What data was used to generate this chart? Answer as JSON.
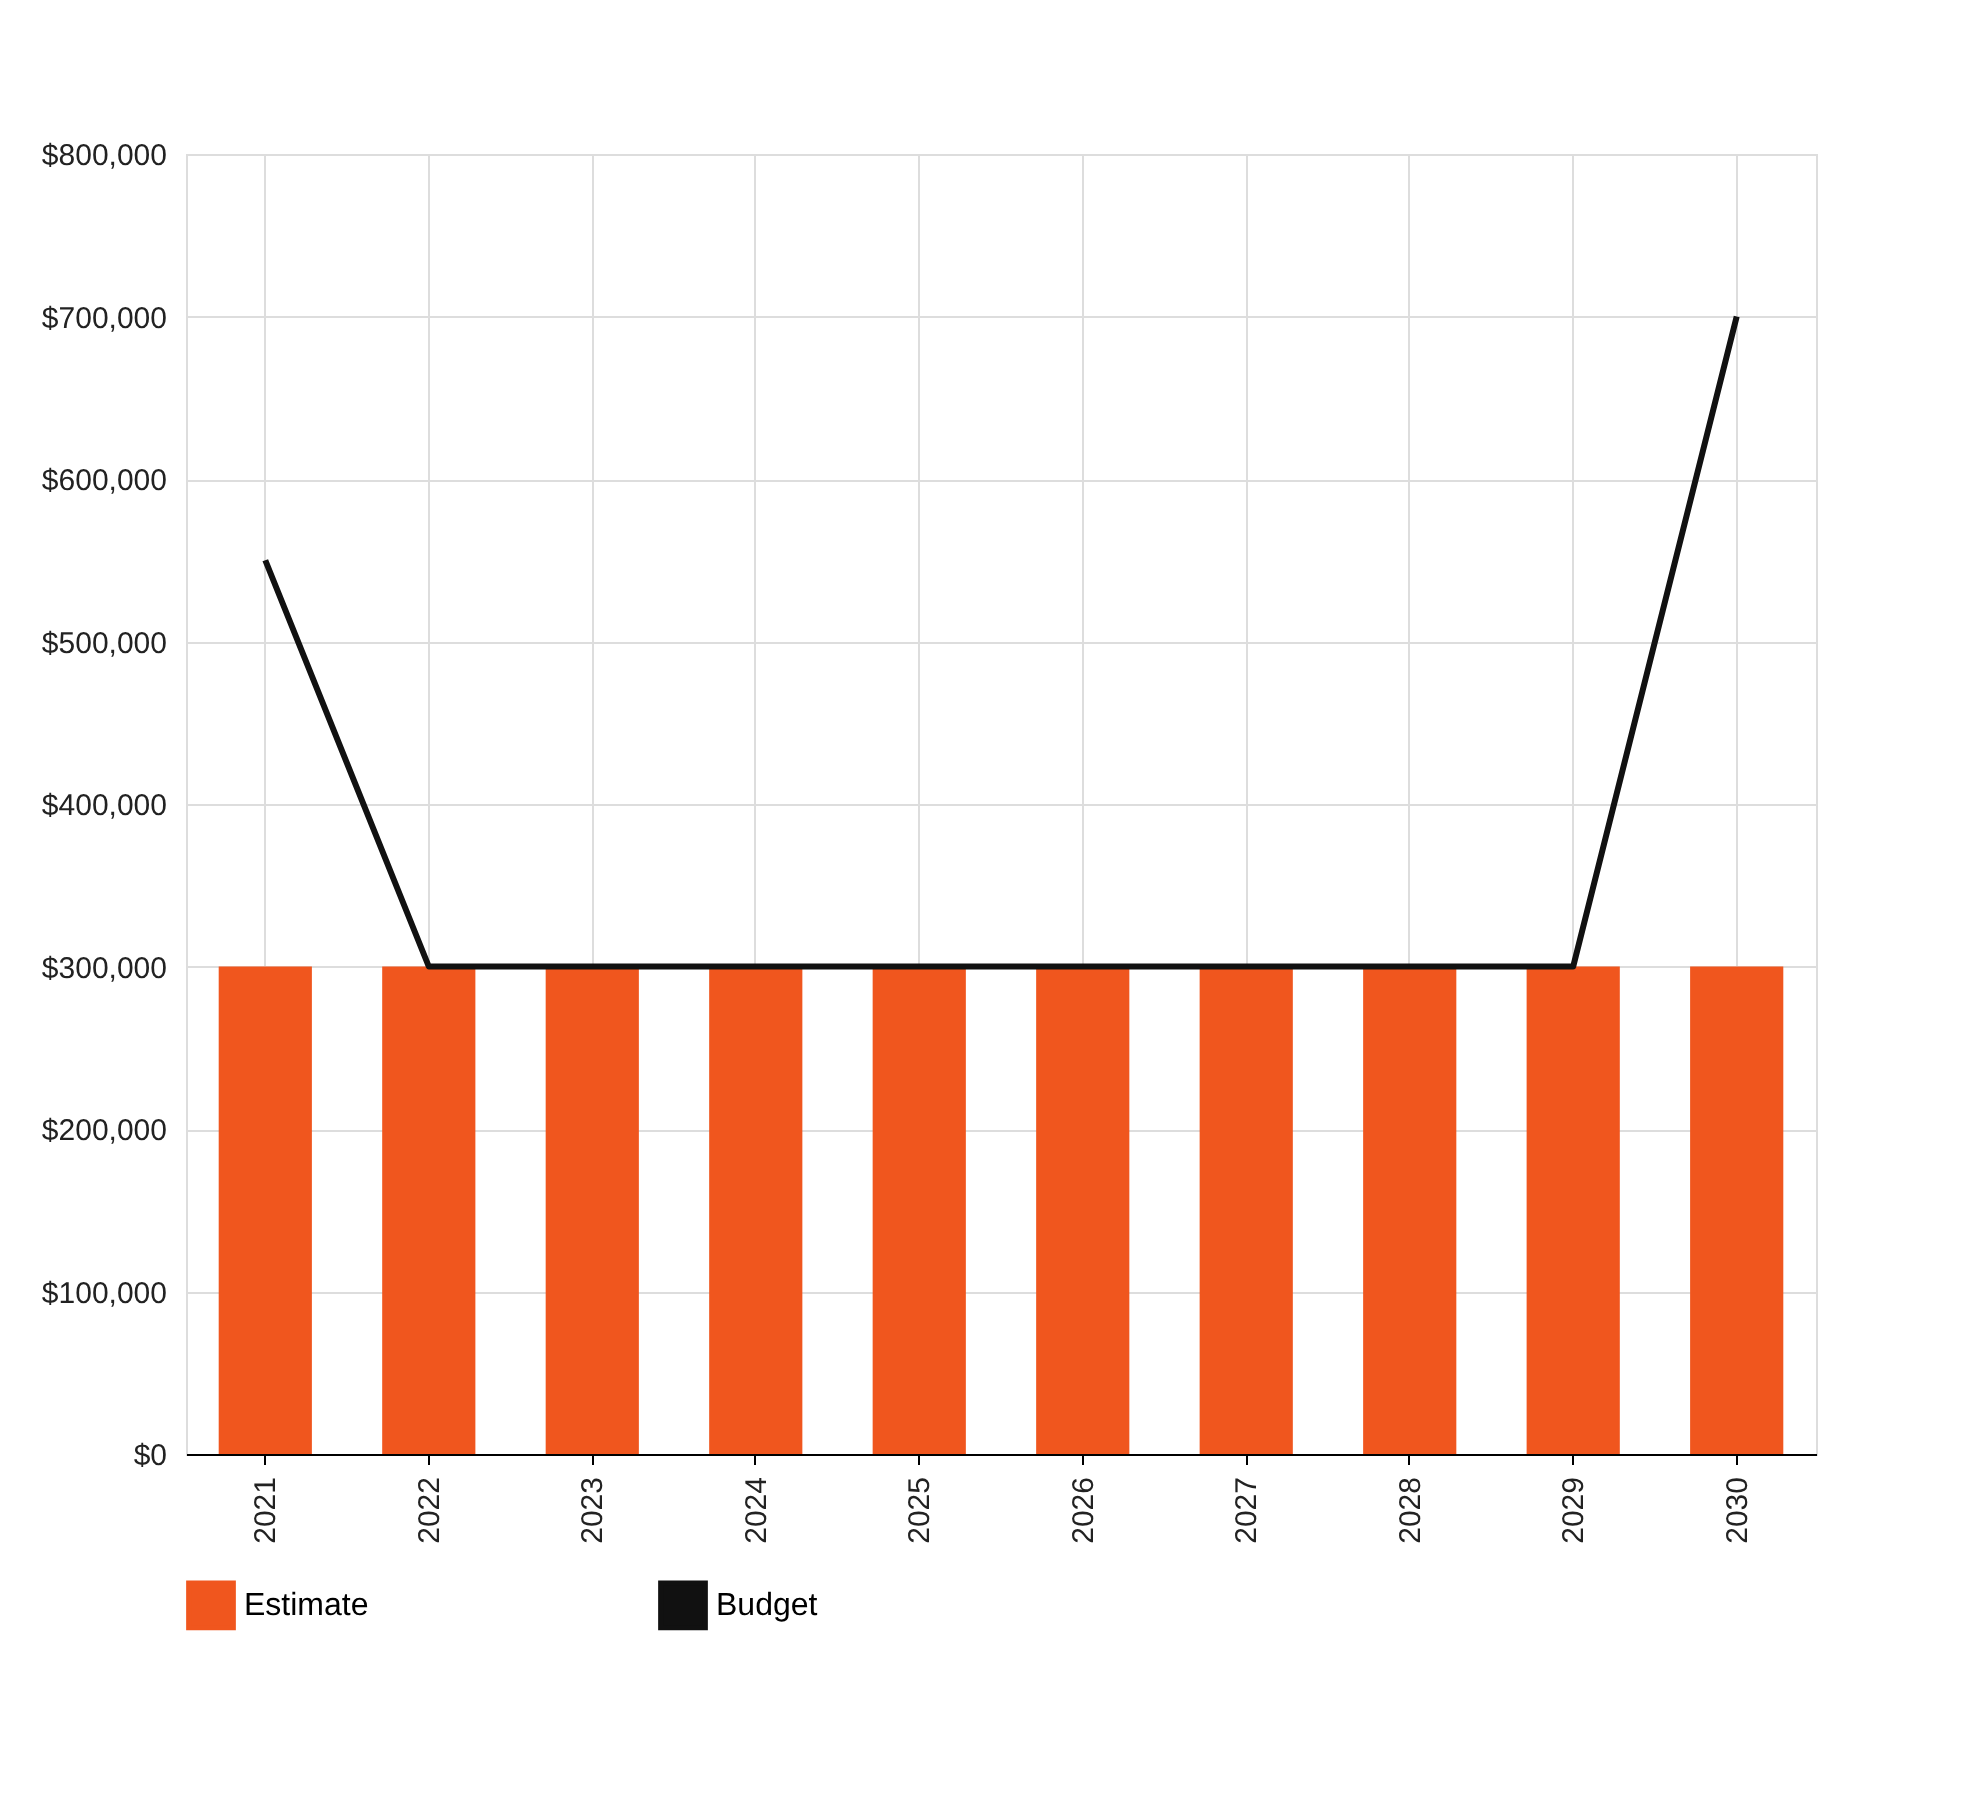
{
  "chart_data": {
    "type": "bar",
    "categories": [
      "2021",
      "2022",
      "2023",
      "2024",
      "2025",
      "2026",
      "2027",
      "2028",
      "2029",
      "2030"
    ],
    "series": [
      {
        "name": "Estimate",
        "color": "#f0561e",
        "values": [
          300000,
          300000,
          300000,
          300000,
          300000,
          300000,
          300000,
          300000,
          300000,
          300000
        ]
      },
      {
        "name": "Budget",
        "type": "line",
        "color": "#111111",
        "values": [
          550000,
          300000,
          300000,
          300000,
          300000,
          300000,
          300000,
          300000,
          300000,
          700000
        ]
      }
    ],
    "ylim": [
      0,
      800000
    ],
    "yticks": [
      {
        "value": 0,
        "label": "$0"
      },
      {
        "value": 100000,
        "label": "$100,000"
      },
      {
        "value": 200000,
        "label": "$200,000"
      },
      {
        "value": 300000,
        "label": "$300,000"
      },
      {
        "value": 400000,
        "label": "$400,000"
      },
      {
        "value": 500000,
        "label": "$500,000"
      },
      {
        "value": 600000,
        "label": "$600,000"
      },
      {
        "value": 700000,
        "label": "$700,000"
      },
      {
        "value": 800000,
        "label": "$800,000"
      }
    ],
    "grid": true,
    "legend": "bottom left",
    "marker": "none",
    "line_style": "solid"
  }
}
